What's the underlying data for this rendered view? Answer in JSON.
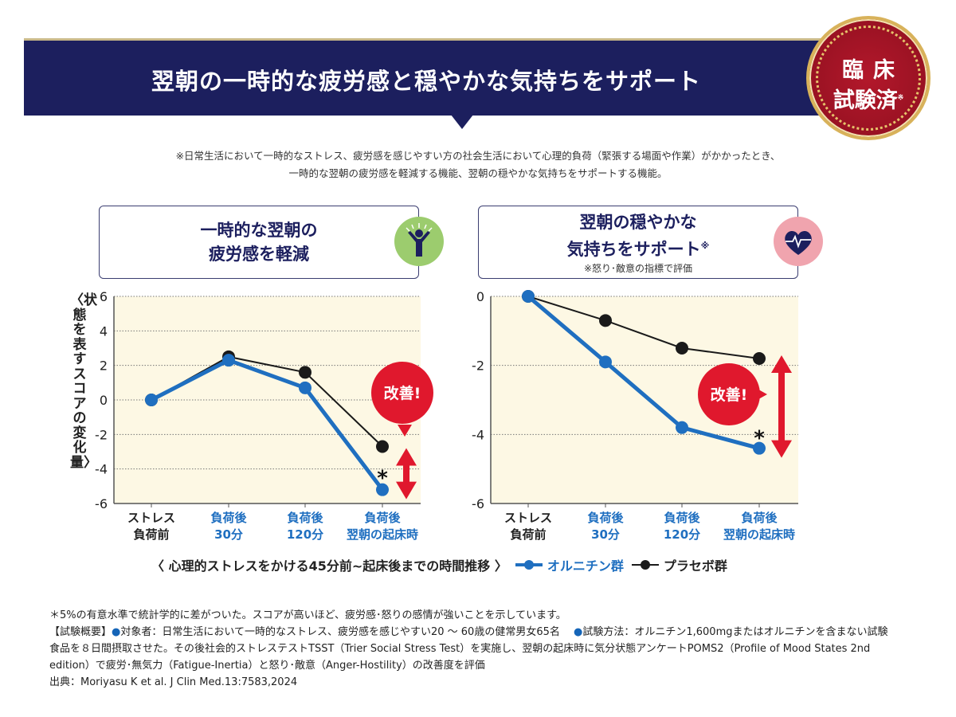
{
  "header": {
    "title": "翌朝の一時的な疲労感と穏やかな気持ちをサポート"
  },
  "badge": {
    "line1": "臨床",
    "line2": "試験済",
    "mark": "※"
  },
  "note": {
    "line1": "※日常生活において一時的なストレス、疲労感を感じやすい方の社会生活において心理的負荷（緊張する場面や作業）がかかったとき、",
    "line2": "一時的な翌朝の疲労感を軽減する機能、翌朝の穏やかな気持ちをサポートする機能。"
  },
  "panels": [
    {
      "title1": "一時的な翌朝の",
      "title2": "疲労感を軽減",
      "icon": "person-cheering-icon"
    },
    {
      "title1": "翌朝の穏やかな",
      "title2": "気持ちをサポート",
      "title_mark": "※",
      "subtitle": "※怒り･敵意の指標で評価",
      "icon": "heart-pulse-icon"
    }
  ],
  "ylabel": "〈状態を表すスコアの変化量〉",
  "xaxis_caption": "〈 心理的ストレスをかける45分前~起床後までの時間推移 〉",
  "colors": {
    "navy": "#1c1f5e",
    "ornithine": "#1f6fc0",
    "placebo": "#1a1a1a",
    "accent_red": "#e0182d",
    "plot_bg": "#fdf8e4"
  },
  "chart_data": [
    {
      "type": "line",
      "categories": [
        [
          "ストレス",
          "負荷前"
        ],
        [
          "負荷後",
          "30分"
        ],
        [
          "負荷後",
          "120分"
        ],
        [
          "負荷後",
          "翌朝の起床時"
        ]
      ],
      "ylim": [
        -6,
        6
      ],
      "yticks": [
        6,
        4,
        2,
        0,
        -2,
        -4,
        -6
      ],
      "grid": true,
      "series": [
        {
          "name": "オルニチン群",
          "values": [
            0,
            2.3,
            0.7,
            -5.2
          ]
        },
        {
          "name": "プラセボ群",
          "values": [
            0,
            2.5,
            1.6,
            -2.7
          ]
        }
      ],
      "annotations": {
        "callout": "改善!",
        "significance": "*"
      }
    },
    {
      "type": "line",
      "categories": [
        [
          "ストレス",
          "負荷前"
        ],
        [
          "負荷後",
          "30分"
        ],
        [
          "負荷後",
          "120分"
        ],
        [
          "負荷後",
          "翌朝の起床時"
        ]
      ],
      "ylim": [
        -6,
        0
      ],
      "yticks": [
        0,
        -2,
        -4,
        -6
      ],
      "grid": true,
      "series": [
        {
          "name": "オルニチン群",
          "values": [
            0,
            -1.9,
            -3.8,
            -4.4
          ]
        },
        {
          "name": "プラセボ群",
          "values": [
            0,
            -0.7,
            -1.5,
            -1.8
          ]
        }
      ],
      "annotations": {
        "callout": "改善!",
        "significance": "*"
      }
    }
  ],
  "legend": {
    "placement": "bottom",
    "items": [
      "オルニチン群",
      "プラセボ群"
    ]
  },
  "footnotes": {
    "sig": "＊5%の有意水準で統計学的に差がついた。スコアが高いほど、疲労感･怒りの感情が強いことを示しています。",
    "summary_label": "【試験概要】",
    "subjects": "対象者：日常生活において一時的なストレス、疲労感を感じやすい20 〜 60歳の健常男女65名",
    "method": "試験方法：オルニチン1,600mgまたはオルニチンを含まない試験食品を８日間摂取させた。その後社会的ストレステストTSST（Trier Social Stress Test）を実施し、翌朝の起床時に気分状態アンケートPOMS2（Profile of Mood States 2nd edition）で疲労･無気力（Fatigue-Inertia）と怒り･敵意（Anger-Hostility）の改善度を評価",
    "source": "出典：Moriyasu K et al. J Clin Med.13:7583,2024"
  }
}
